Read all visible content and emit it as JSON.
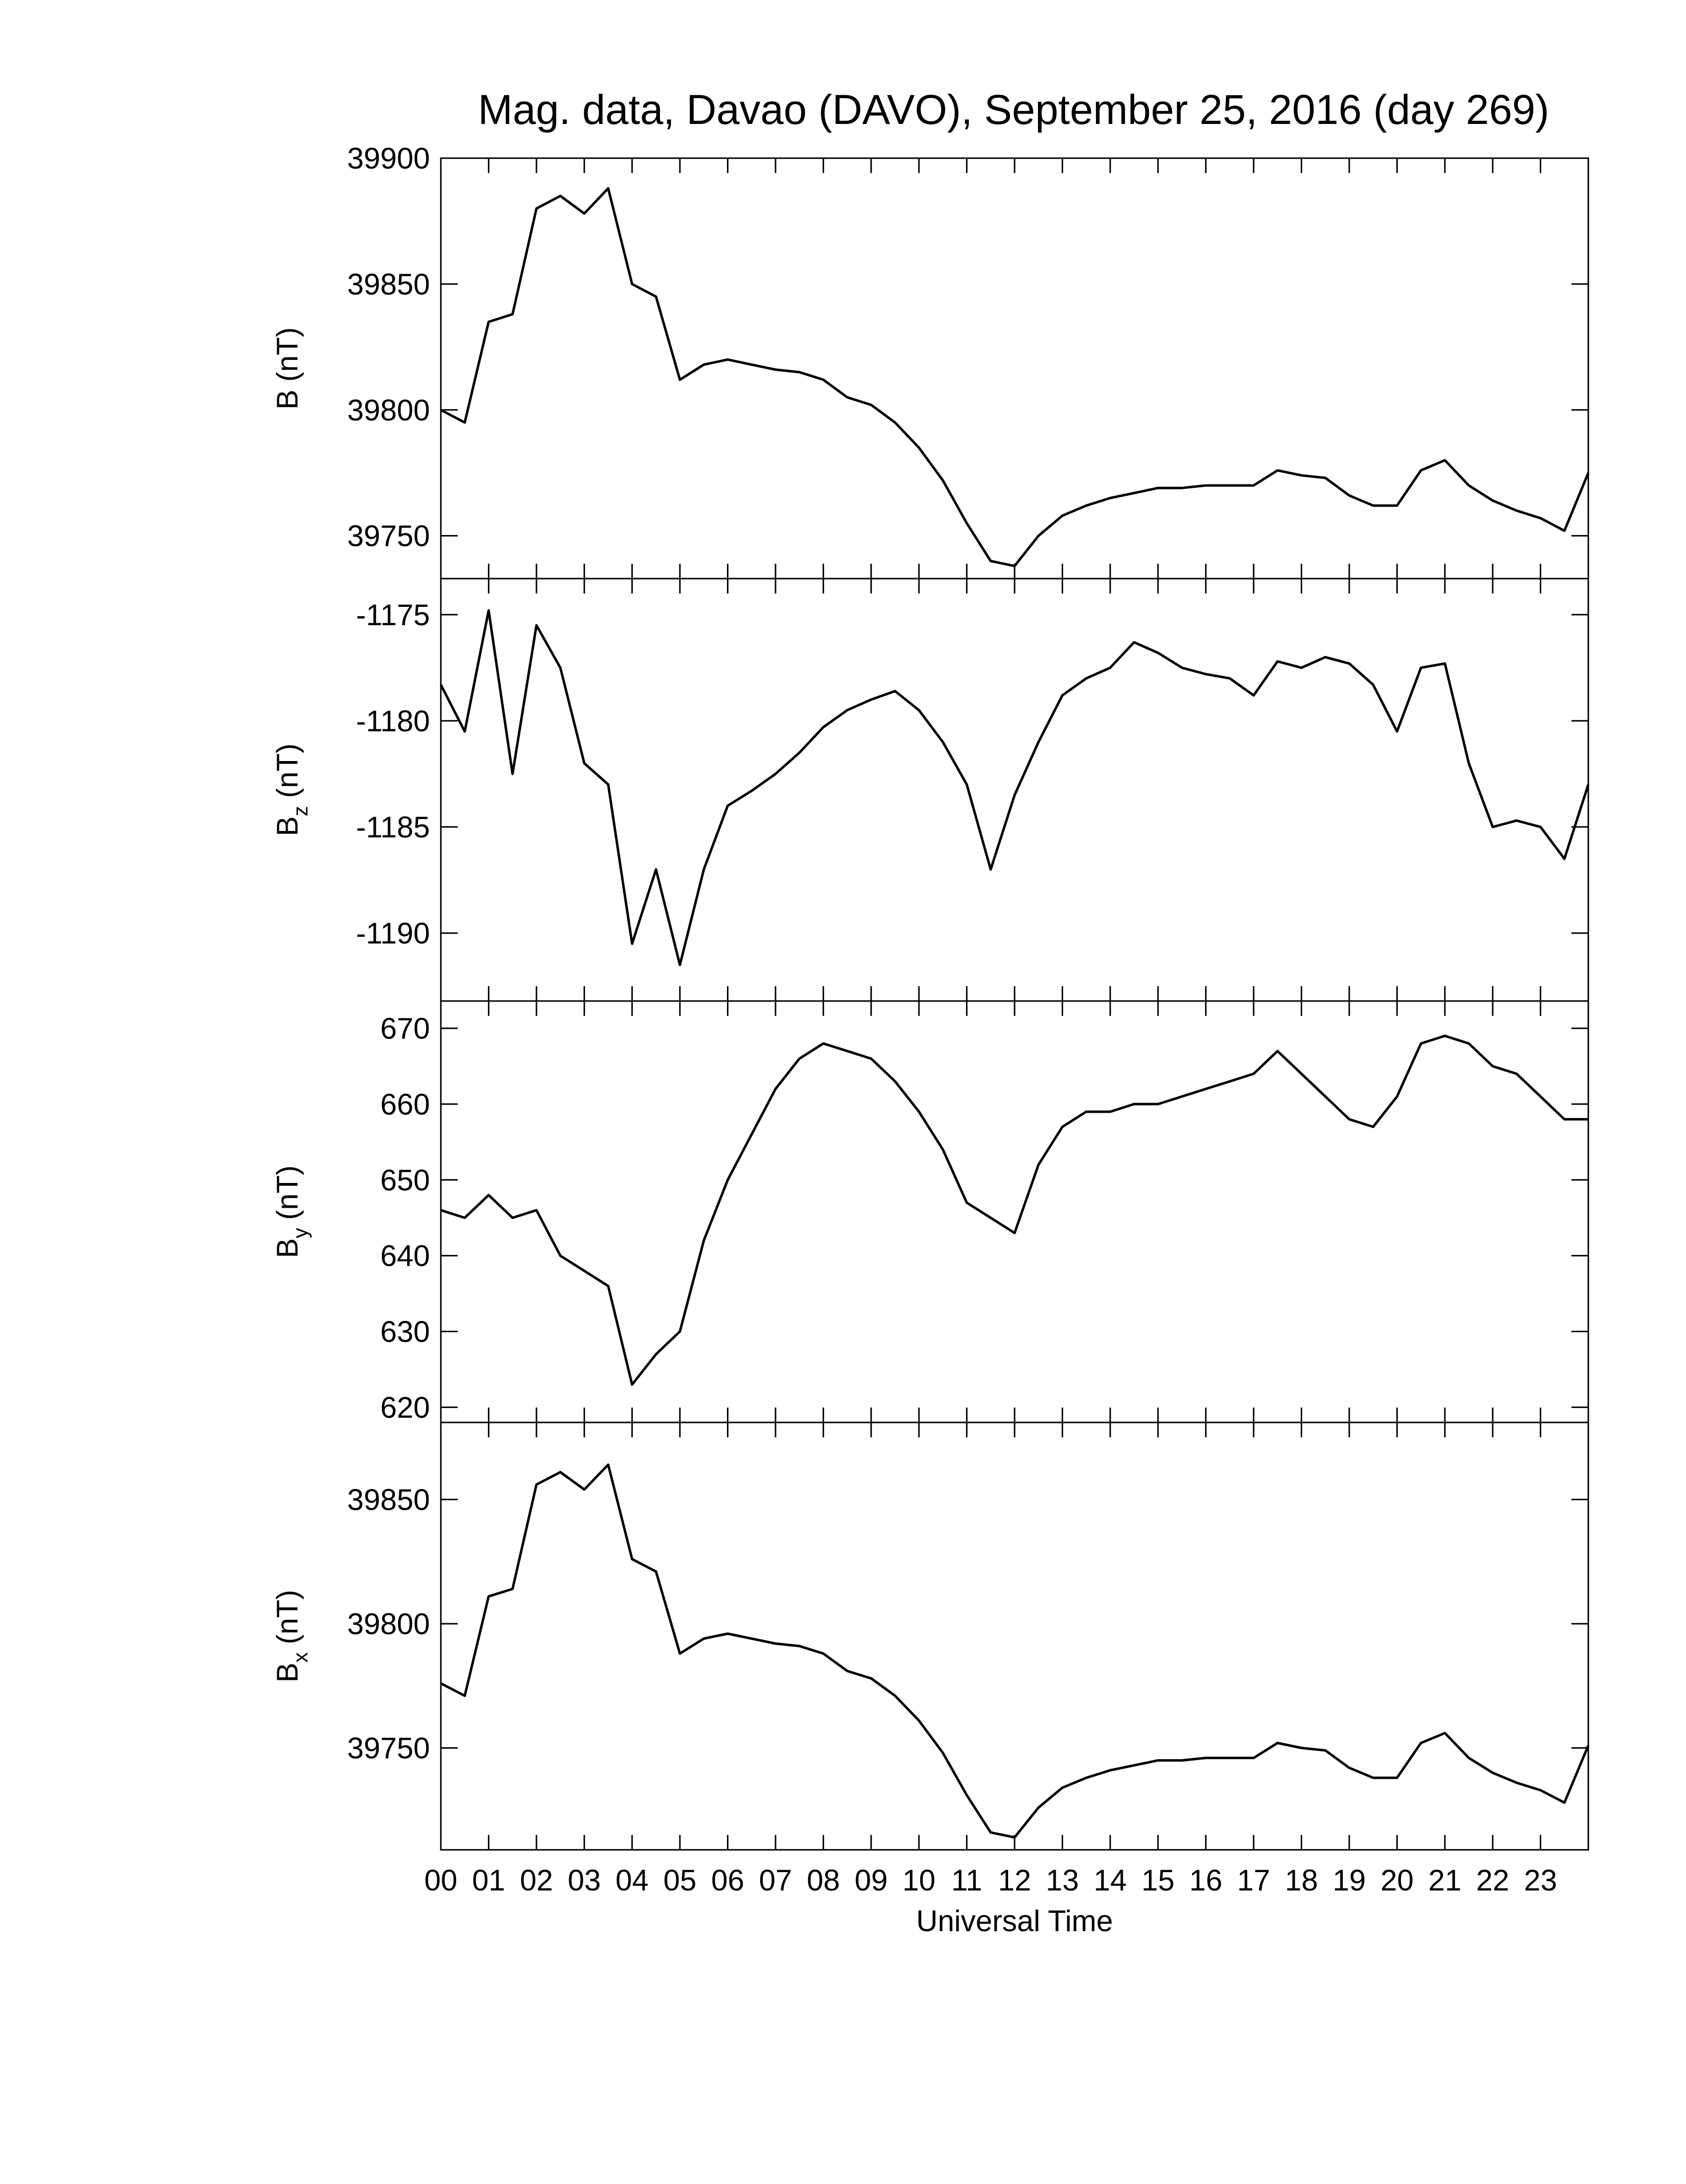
{
  "chart_data": [
    {
      "type": "line",
      "title": "Mag. data, Davao (DAVO), September 25, 2016 (day 269)",
      "ylabel": "B",
      "ylabel_unit": "(nT)",
      "x": [
        0,
        0.5,
        1,
        1.5,
        2,
        2.5,
        3,
        3.5,
        4,
        4.5,
        5,
        5.5,
        6,
        6.5,
        7,
        7.5,
        8,
        8.5,
        9,
        9.5,
        10,
        10.5,
        11,
        11.5,
        12,
        12.5,
        13,
        13.5,
        14,
        14.5,
        15,
        15.5,
        16,
        16.5,
        17,
        17.5,
        18,
        18.5,
        19,
        19.5,
        20,
        20.5,
        21,
        21.5,
        22,
        22.5,
        23,
        23.5,
        24
      ],
      "series": [
        {
          "color": "#000000",
          "values": [
            39800,
            39795,
            39835,
            39838,
            39880,
            39885,
            39878,
            39888,
            39850,
            39845,
            39812,
            39818,
            39820,
            39818,
            39816,
            39815,
            39812,
            39805,
            39802,
            39795,
            39785,
            39772,
            39755,
            39740,
            39738,
            39750,
            39758,
            39762,
            39765,
            39767,
            39769,
            39769,
            39770,
            39770,
            39770,
            39776,
            39774,
            39773,
            39766,
            39762,
            39762,
            39776,
            39780,
            39770,
            39764,
            39760,
            39757,
            39752,
            39775
          ]
        }
      ],
      "ylim": [
        39733,
        39900
      ],
      "yticks": [
        39750,
        39800,
        39850,
        39900
      ]
    },
    {
      "type": "line",
      "ylabel": "B",
      "ylabel_sub": "z",
      "ylabel_unit": "(nT)",
      "x": [
        0,
        0.5,
        1,
        1.5,
        2,
        2.5,
        3,
        3.5,
        4,
        4.5,
        5,
        5.5,
        6,
        6.5,
        7,
        7.5,
        8,
        8.5,
        9,
        9.5,
        10,
        10.5,
        11,
        11.5,
        12,
        12.5,
        13,
        13.5,
        14,
        14.5,
        15,
        15.5,
        16,
        16.5,
        17,
        17.5,
        18,
        18.5,
        19,
        19.5,
        20,
        20.5,
        21,
        21.5,
        22,
        22.5,
        23,
        23.5,
        24
      ],
      "series": [
        {
          "color": "#000000",
          "values": [
            -1178.3,
            -1180.5,
            -1174.8,
            -1182.5,
            -1175.5,
            -1177.5,
            -1182,
            -1183,
            -1190.5,
            -1187,
            -1191.5,
            -1187,
            -1184,
            -1183.3,
            -1182.5,
            -1181.5,
            -1180.3,
            -1179.5,
            -1179,
            -1178.6,
            -1179.5,
            -1181,
            -1183,
            -1187,
            -1183.5,
            -1181,
            -1178.8,
            -1178,
            -1177.5,
            -1176.3,
            -1176.8,
            -1177.5,
            -1177.8,
            -1178,
            -1178.8,
            -1177.2,
            -1177.5,
            -1177,
            -1177.3,
            -1178.3,
            -1180.5,
            -1177.5,
            -1177.3,
            -1182,
            -1185,
            -1184.7,
            -1185,
            -1186.5,
            -1183
          ]
        }
      ],
      "ylim": [
        -1193.2,
        -1173.3
      ],
      "yticks": [
        -1190,
        -1185,
        -1180,
        -1175
      ]
    },
    {
      "type": "line",
      "ylabel": "B",
      "ylabel_sub": "y",
      "ylabel_unit": "(nT)",
      "x": [
        0,
        0.5,
        1,
        1.5,
        2,
        2.5,
        3,
        3.5,
        4,
        4.5,
        5,
        5.5,
        6,
        6.5,
        7,
        7.5,
        8,
        8.5,
        9,
        9.5,
        10,
        10.5,
        11,
        11.5,
        12,
        12.5,
        13,
        13.5,
        14,
        14.5,
        15,
        15.5,
        16,
        16.5,
        17,
        17.5,
        18,
        18.5,
        19,
        19.5,
        20,
        20.5,
        21,
        21.5,
        22,
        22.5,
        23,
        23.5,
        24
      ],
      "series": [
        {
          "color": "#000000",
          "values": [
            646,
            645,
            648,
            645,
            646,
            640,
            638,
            636,
            623,
            627,
            630,
            642,
            650,
            656,
            662,
            666,
            668,
            667,
            666,
            663,
            659,
            654,
            647,
            645,
            643,
            652,
            657,
            659,
            659,
            660,
            660,
            661,
            662,
            663,
            664,
            667,
            664,
            661,
            658,
            657,
            661,
            668,
            669,
            668,
            665,
            664,
            661,
            658,
            658
          ]
        }
      ],
      "ylim": [
        618,
        673.6
      ],
      "yticks": [
        620,
        630,
        640,
        650,
        660,
        670
      ]
    },
    {
      "type": "line",
      "ylabel": "B",
      "ylabel_sub": "x",
      "ylabel_unit": "(nT)",
      "xlabel": "Universal Time",
      "x": [
        0,
        0.5,
        1,
        1.5,
        2,
        2.5,
        3,
        3.5,
        4,
        4.5,
        5,
        5.5,
        6,
        6.5,
        7,
        7.5,
        8,
        8.5,
        9,
        9.5,
        10,
        10.5,
        11,
        11.5,
        12,
        12.5,
        13,
        13.5,
        14,
        14.5,
        15,
        15.5,
        16,
        16.5,
        17,
        17.5,
        18,
        18.5,
        19,
        19.5,
        20,
        20.5,
        21,
        21.5,
        22,
        22.5,
        23,
        23.5,
        24
      ],
      "series": [
        {
          "color": "#000000",
          "values": [
            39776,
            39771,
            39811,
            39814,
            39856,
            39861,
            39854,
            39864,
            39826,
            39821,
            39788,
            39794,
            39796,
            39794,
            39792,
            39791,
            39788,
            39781,
            39778,
            39771,
            39761,
            39748,
            39731,
            39716,
            39714,
            39726,
            39734,
            39738,
            39741,
            39743,
            39745,
            39745,
            39746,
            39746,
            39746,
            39752,
            39750,
            39749,
            39742,
            39738,
            39738,
            39752,
            39756,
            39746,
            39740,
            39736,
            39733,
            39728,
            39751
          ]
        }
      ],
      "ylim": [
        39709,
        39881
      ],
      "yticks": [
        39750,
        39800,
        39850
      ],
      "xlim": [
        0,
        24
      ],
      "xticks": [
        {
          "value": 0,
          "label": "00"
        },
        {
          "value": 1,
          "label": "01"
        },
        {
          "value": 2,
          "label": "02"
        },
        {
          "value": 3,
          "label": "03"
        },
        {
          "value": 4,
          "label": "04"
        },
        {
          "value": 5,
          "label": "05"
        },
        {
          "value": 6,
          "label": "06"
        },
        {
          "value": 7,
          "label": "07"
        },
        {
          "value": 8,
          "label": "08"
        },
        {
          "value": 9,
          "label": "09"
        },
        {
          "value": 10,
          "label": "10"
        },
        {
          "value": 11,
          "label": "11"
        },
        {
          "value": 12,
          "label": "12"
        },
        {
          "value": 13,
          "label": "13"
        },
        {
          "value": 14,
          "label": "14"
        },
        {
          "value": 15,
          "label": "15"
        },
        {
          "value": 16,
          "label": "16"
        },
        {
          "value": 17,
          "label": "17"
        },
        {
          "value": 18,
          "label": "18"
        },
        {
          "value": 19,
          "label": "19"
        },
        {
          "value": 20,
          "label": "20"
        },
        {
          "value": 21,
          "label": "21"
        },
        {
          "value": 22,
          "label": "22"
        },
        {
          "value": 23,
          "label": "23"
        }
      ]
    }
  ]
}
